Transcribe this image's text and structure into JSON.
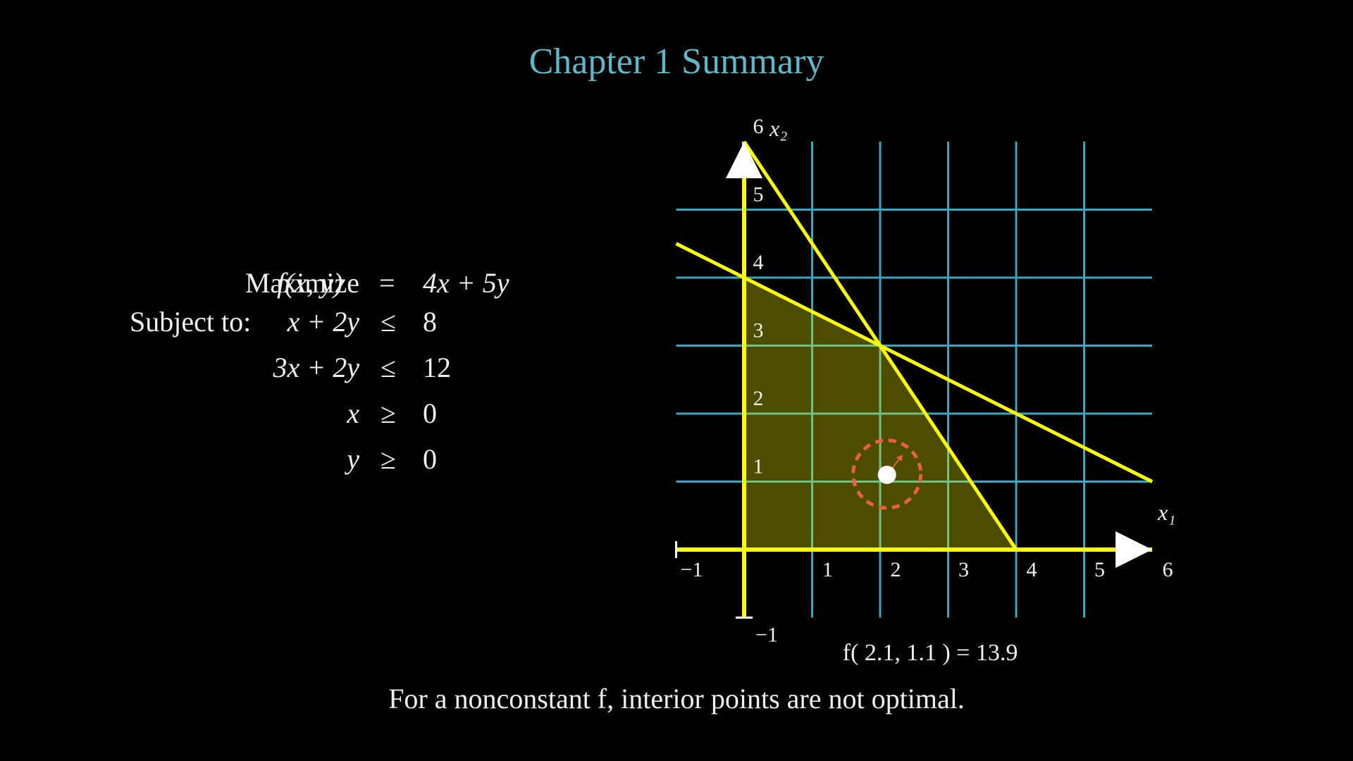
{
  "title": "Chapter 1 Summary",
  "problem": {
    "objective": {
      "label": "Maximize",
      "lhs": "f(x, y)",
      "rel": "=",
      "rhs": "4x + 5y"
    },
    "subject_label": "Subject to:",
    "constraints": [
      {
        "lhs": "x + 2y",
        "rel": "≤",
        "rhs": "8"
      },
      {
        "lhs": "3x + 2y",
        "rel": "≤",
        "rhs": "12"
      },
      {
        "lhs": "x",
        "rel": "≥",
        "rhs": "0"
      },
      {
        "lhs": "y",
        "rel": "≥",
        "rhs": "0"
      }
    ]
  },
  "plot": {
    "x_label": "x₁",
    "y_label": "x₂",
    "x_ticks": [
      "−1",
      "1",
      "2",
      "3",
      "4",
      "5",
      "6"
    ],
    "y_ticks": [
      "−1",
      "1",
      "2",
      "3",
      "4",
      "5",
      "6"
    ],
    "x_range": [
      -1,
      6
    ],
    "y_range": [
      -1,
      6
    ],
    "grid_color": "#3aa6bf",
    "constraint_color": "#ffff00",
    "feasible_fill": "#4a4a00",
    "point_color": "#ffffff",
    "ring_color": "#e8603c"
  },
  "chart_data": {
    "type": "scatter",
    "x_range": [
      -1,
      6
    ],
    "y_range": [
      -1,
      6
    ],
    "lines": [
      {
        "equation": "x + 2y = 8",
        "points": [
          [
            -1,
            4.5
          ],
          [
            6,
            1
          ]
        ]
      },
      {
        "equation": "3x + 2y = 12",
        "points": [
          [
            0,
            6
          ],
          [
            4,
            0
          ]
        ]
      }
    ],
    "feasible_region": [
      [
        0,
        0
      ],
      [
        4,
        0
      ],
      [
        2,
        3
      ],
      [
        0,
        4
      ]
    ],
    "point": {
      "x": 2.1,
      "y": 1.1
    }
  },
  "eval": {
    "text": "f( 2.1,  1.1 ) = 13.9"
  },
  "caption": "For a nonconstant f,  interior points are not optimal."
}
